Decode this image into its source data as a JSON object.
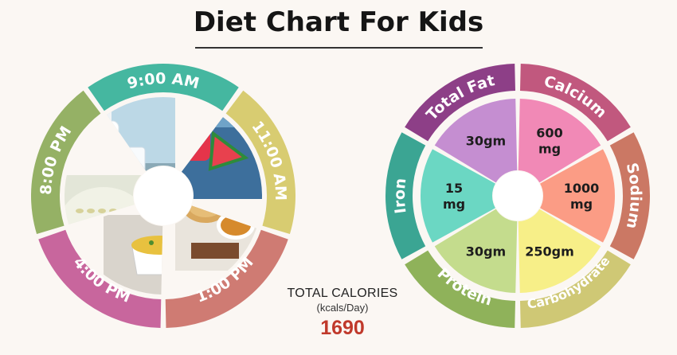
{
  "title": "Diet Chart For Kids",
  "meal_wheel": {
    "segments": [
      {
        "time": "9:00 AM",
        "color": "#45b7a0",
        "food": "milk"
      },
      {
        "time": "11:00 AM",
        "color": "#d8cc71",
        "food": "watermelon-juice"
      },
      {
        "time": "1:00 PM",
        "color": "#cf7b73",
        "food": "roti-and-dal"
      },
      {
        "time": "4:00 PM",
        "color": "#c8669d",
        "food": "poha"
      },
      {
        "time": "8:00 PM",
        "color": "#95b165",
        "food": "kheer"
      }
    ]
  },
  "nutrient_wheel": {
    "segments": [
      {
        "nutrient": "Total Fat",
        "value": "30gm",
        "ring_color": "#8d3f87",
        "fill_color": "#c58ed1"
      },
      {
        "nutrient": "Calcium",
        "value": "600 mg",
        "ring_color": "#c1587e",
        "fill_color": "#f189b6"
      },
      {
        "nutrient": "Sodium",
        "value": "1000 mg",
        "ring_color": "#cb7864",
        "fill_color": "#fb9c85"
      },
      {
        "nutrient": "Carbohydrate",
        "value": "250gm",
        "ring_color": "#cfc875",
        "fill_color": "#f7ef88"
      },
      {
        "nutrient": "Protein",
        "value": "30gm",
        "ring_color": "#8fb25a",
        "fill_color": "#c4dc8d"
      },
      {
        "nutrient": "Iron",
        "value": "15 mg",
        "ring_color": "#3ba593",
        "fill_color": "#6bd7c3"
      }
    ]
  },
  "calories": {
    "label": "TOTAL CALORIES",
    "unit": "(kcals/Day)",
    "value": "1690"
  }
}
